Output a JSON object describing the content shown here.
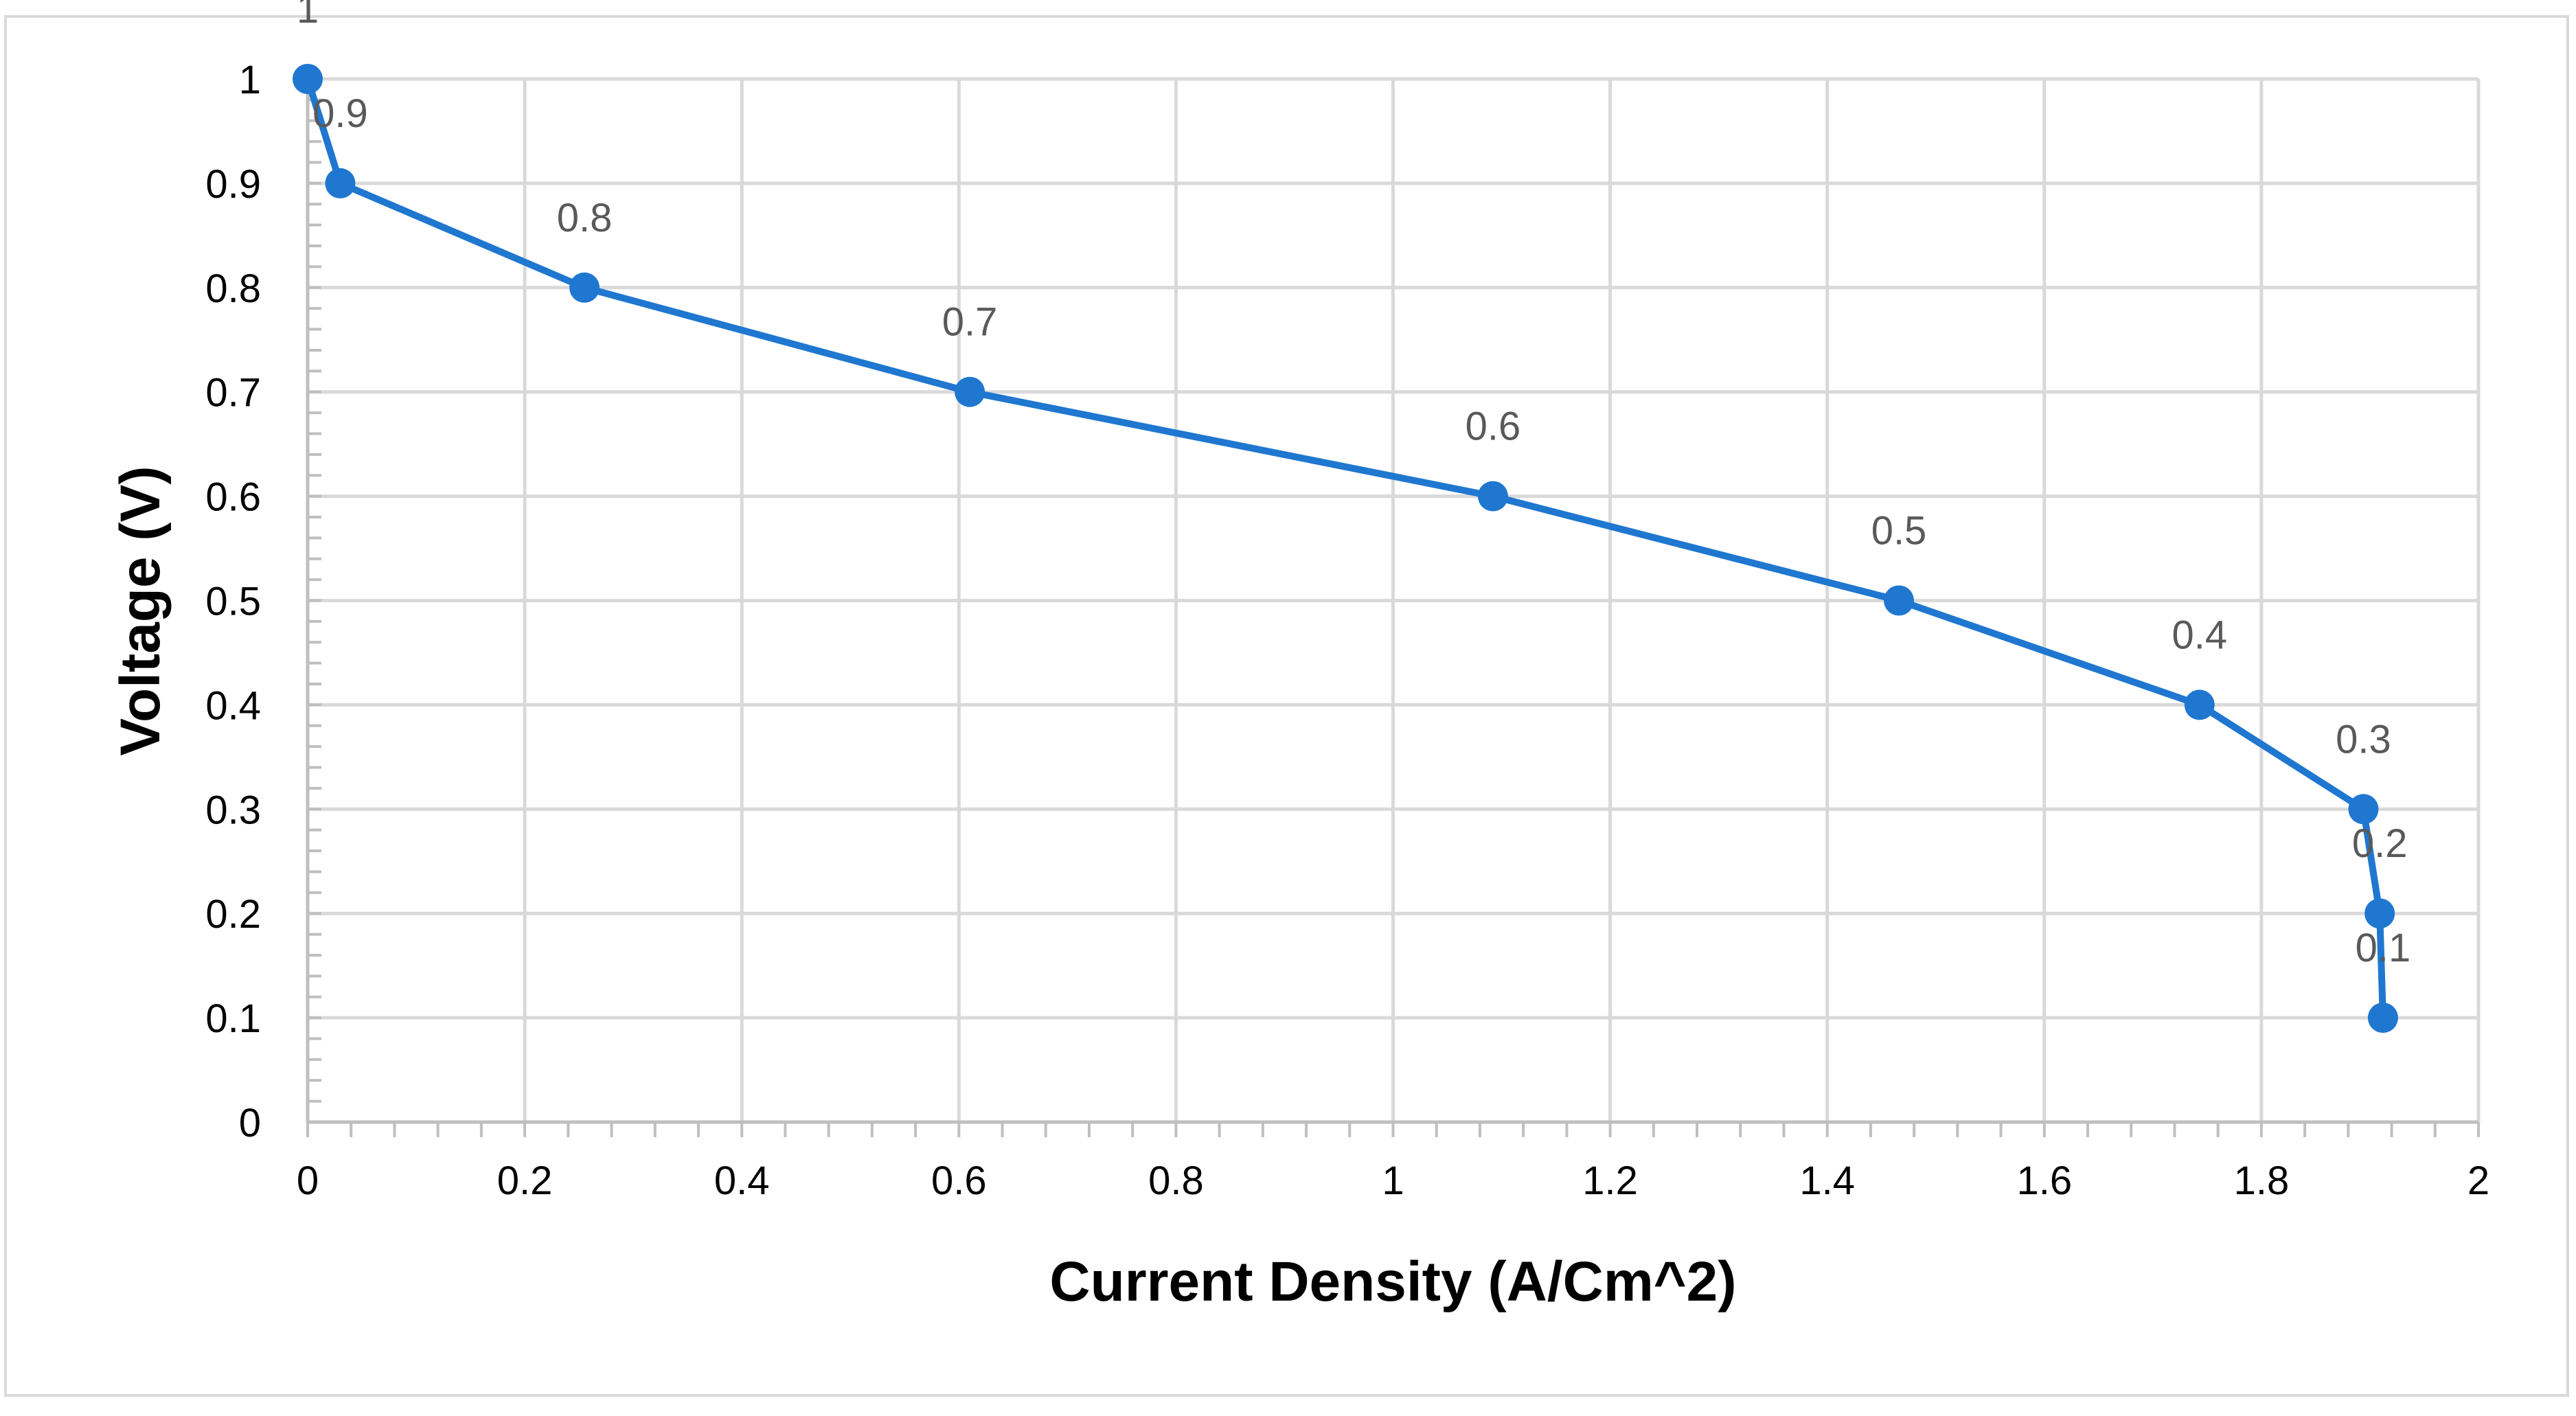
{
  "chart_data": {
    "type": "line",
    "title": "",
    "xlabel": "Current Density (A/Cm^2)",
    "ylabel": "Voltage (V)",
    "xlim": [
      0,
      2
    ],
    "ylim": [
      0,
      1
    ],
    "x_ticks": [
      "0",
      "0.2",
      "0.4",
      "0.6",
      "0.8",
      "1",
      "1.2",
      "1.4",
      "1.6",
      "1.8",
      "2"
    ],
    "y_ticks": [
      "0",
      "0.1",
      "0.2",
      "0.3",
      "0.4",
      "0.5",
      "0.6",
      "0.7",
      "0.8",
      "0.9",
      "1"
    ],
    "grid": true,
    "legend": "none",
    "series": [
      {
        "color": "#1f77d0",
        "points": [
          {
            "x": 0.0,
            "y": 1.0,
            "label": "1"
          },
          {
            "x": 0.03,
            "y": 0.9,
            "label": "0.9"
          },
          {
            "x": 0.255,
            "y": 0.8,
            "label": "0.8"
          },
          {
            "x": 0.61,
            "y": 0.7,
            "label": "0.7"
          },
          {
            "x": 1.092,
            "y": 0.6,
            "label": "0.6"
          },
          {
            "x": 1.466,
            "y": 0.5,
            "label": "0.5"
          },
          {
            "x": 1.743,
            "y": 0.4,
            "label": "0.4"
          },
          {
            "x": 1.894,
            "y": 0.3,
            "label": "0.3"
          },
          {
            "x": 1.909,
            "y": 0.2,
            "label": "0.2"
          },
          {
            "x": 1.912,
            "y": 0.1,
            "label": "0.1"
          }
        ]
      }
    ]
  }
}
